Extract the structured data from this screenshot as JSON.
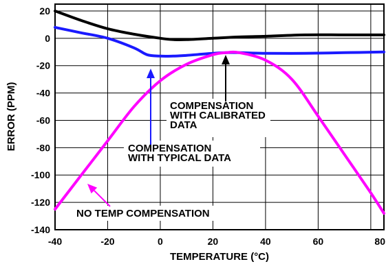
{
  "chart_data": {
    "type": "line",
    "xlabel": "TEMPERATURE (°C)",
    "ylabel": "ERROR (PPM)",
    "xlim": [
      -40,
      85
    ],
    "ylim": [
      -140,
      25
    ],
    "xticks": [
      "-40",
      "-20",
      "0",
      "20",
      "40",
      "60",
      "80"
    ],
    "yticks": [
      "20",
      "0",
      "-20",
      "-40",
      "-60",
      "-80",
      "-100",
      "-120",
      "-140"
    ],
    "grid": true,
    "series": [
      {
        "color": "#000000",
        "x": [
          -40,
          -30,
          -20,
          -10,
          0,
          5,
          10,
          20,
          30,
          40,
          55,
          70,
          85
        ],
        "y": [
          20,
          13,
          7,
          3,
          0,
          -1,
          -1,
          0,
          1,
          1.5,
          2.5,
          2.5,
          2.5
        ]
      },
      {
        "color": "#1a1aff",
        "x": [
          -40,
          -30,
          -20,
          -10,
          -5,
          0,
          5,
          10,
          20,
          25,
          30,
          40,
          55,
          70,
          85
        ],
        "y": [
          8,
          4,
          0,
          -7,
          -12,
          -13,
          -13,
          -12.5,
          -11,
          -10.5,
          -10.5,
          -11,
          -11,
          -10.5,
          -10
        ]
      },
      {
        "color": "#ff00ff",
        "x": [
          -40,
          -30,
          -20,
          -10,
          0,
          10,
          20,
          25,
          30,
          40,
          50,
          60,
          70,
          80,
          85
        ],
        "y": [
          -125,
          -100,
          -75,
          -50,
          -31,
          -19,
          -12,
          -10.5,
          -10.5,
          -16,
          -30,
          -57,
          -85,
          -113,
          -128
        ]
      }
    ],
    "annotations": [
      {
        "text_lines": [
          "COMPENSATION",
          "WITH CALIBRATED",
          "DATA"
        ],
        "color": "#000000"
      },
      {
        "text_lines": [
          "COMPENSATION",
          "WITH TYPICAL DATA"
        ],
        "color": "#1a1aff"
      },
      {
        "text_lines": [
          "NO TEMP COMPENSATION"
        ],
        "color": "#ff00ff"
      }
    ]
  }
}
